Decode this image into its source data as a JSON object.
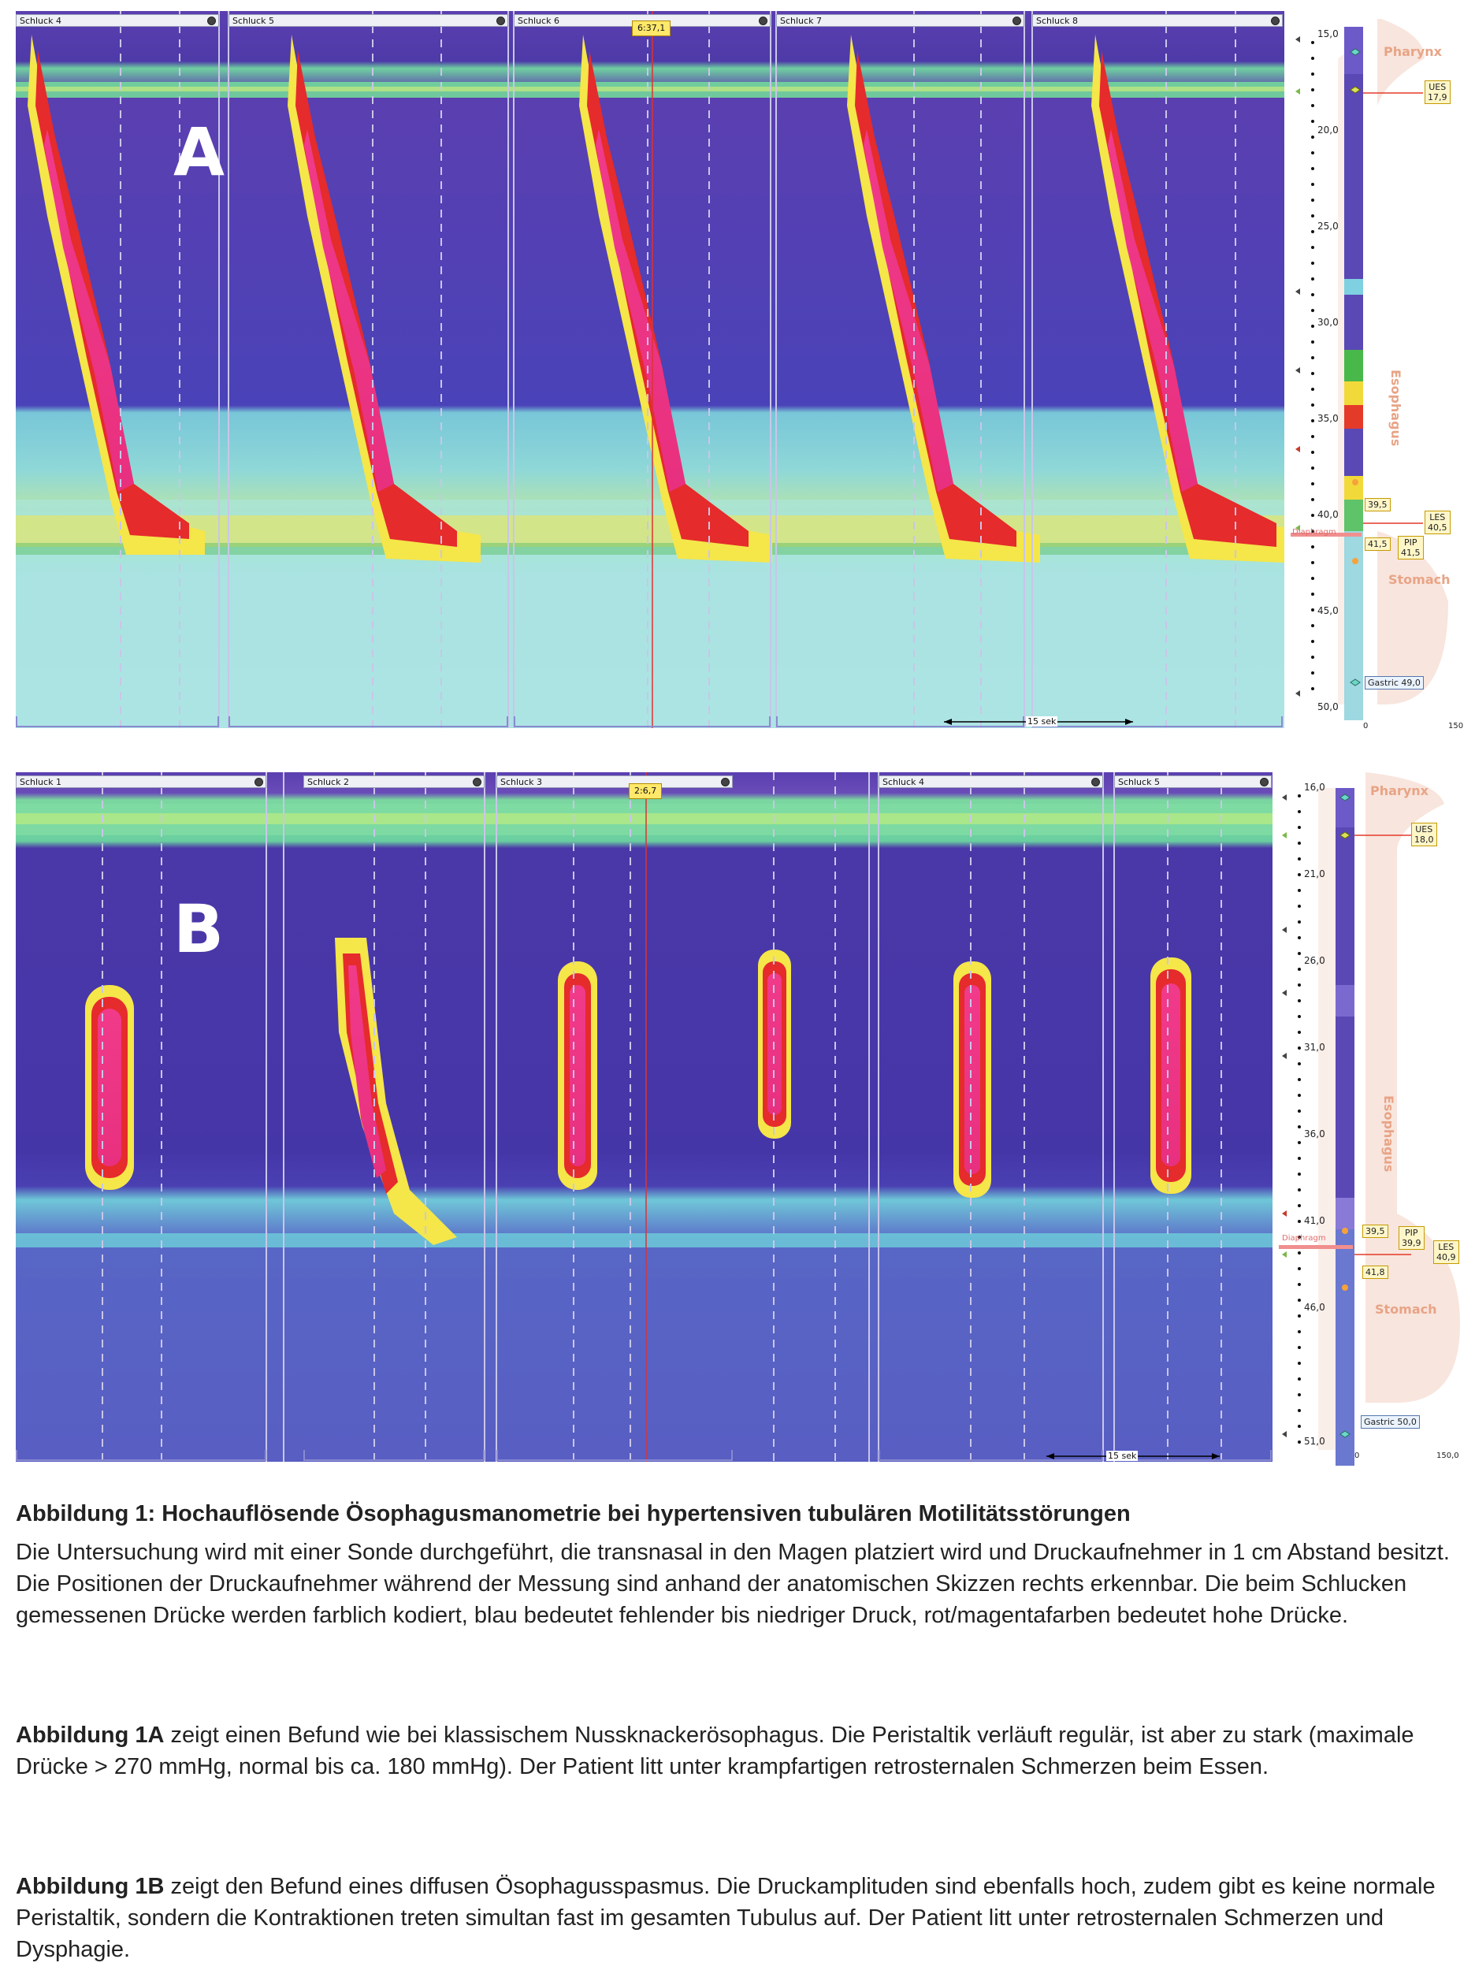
{
  "panelA": {
    "letter": "A",
    "swallows": [
      "Schluck 4",
      "Schluck 5",
      "Schluck 6",
      "Schluck 7",
      "Schluck 8"
    ],
    "time": "6:37,1",
    "scale": "15 sek",
    "ticks": [
      "15,0",
      "20,0",
      "25,0",
      "30,0",
      "35,0",
      "40,0",
      "45,0",
      "50,0"
    ],
    "pharynx": "Pharynx",
    "esophagus": "Esophagus",
    "stomach": "Stomach",
    "diaphragm": "Diaphragm",
    "ues_label": "UES",
    "ues_value": "17,9",
    "les_label": "LES",
    "les_value": "40,5",
    "pip_label": "PIP",
    "pip_value": "41,5",
    "m1": "39,5",
    "m2": "41,5",
    "gastric": "Gastric 49,0",
    "scale_min": "0",
    "scale_max": "150"
  },
  "panelB": {
    "letter": "B",
    "swallows": [
      "Schluck 1",
      "Schluck 2",
      "Schluck 3",
      "Schluck 4",
      "Schluck 5"
    ],
    "time": "2:6,7",
    "scale": "15 sek",
    "ticks": [
      "16,0",
      "21,0",
      "26,0",
      "31,0",
      "36,0",
      "41,0",
      "46,0",
      "51,0"
    ],
    "pharynx": "Pharynx",
    "esophagus": "Esophagus",
    "stomach": "Stomach",
    "diaphragm": "Diaphragm",
    "ues_label": "UES",
    "ues_value": "18,0",
    "les_label": "LES",
    "les_value": "40,9",
    "pip_label": "PIP",
    "pip_value": "39,9",
    "m1": "39,5",
    "m2": "41,8",
    "gastric": "Gastric 50,0",
    "scale_min": "0",
    "scale_max": "150,0"
  },
  "caption": {
    "title": "Abbildung 1: Hochauflösende Ösophagusmanometrie bei hypertensiven tubulären Motilitätsstörungen",
    "intro": "Die Untersuchung wird mit einer Sonde durchgeführt, die transnasal in den Magen platziert wird und Druckaufnehmer in 1 cm Abstand besitzt. Die Positionen der Druckaufnehmer während der Messung sind anhand der anatomischen Skizzen rechts erkennbar. Die beim Schlucken gemessenen Drücke werden farblich kodiert, blau bedeutet fehlender bis niedriger Druck, rot/magentafarben bedeutet hohe Drücke.",
    "a_lead": "Abbildung 1A",
    "a_text": " zeigt einen Befund wie bei klassischem Nussknackerösophagus. Die Peristaltik verläuft regulär, ist aber zu stark (maximale Drücke > 270 mmHg, normal bis ca. 180 mmHg). Der Patient litt unter krampfartigen retrosternalen Schmerzen beim Essen.",
    "b_lead": "Abbildung 1B",
    "b_text": " zeigt den Befund eines diffusen Ösophagusspasmus. Die Druckamplituden sind ebenfalls hoch, zudem gibt es keine normale Peristaltik, sondern die Kontraktionen treten simultan fast im gesamten Tubulus auf. Der Patient litt unter retrosternalen Schmerzen und Dysphagie."
  }
}
